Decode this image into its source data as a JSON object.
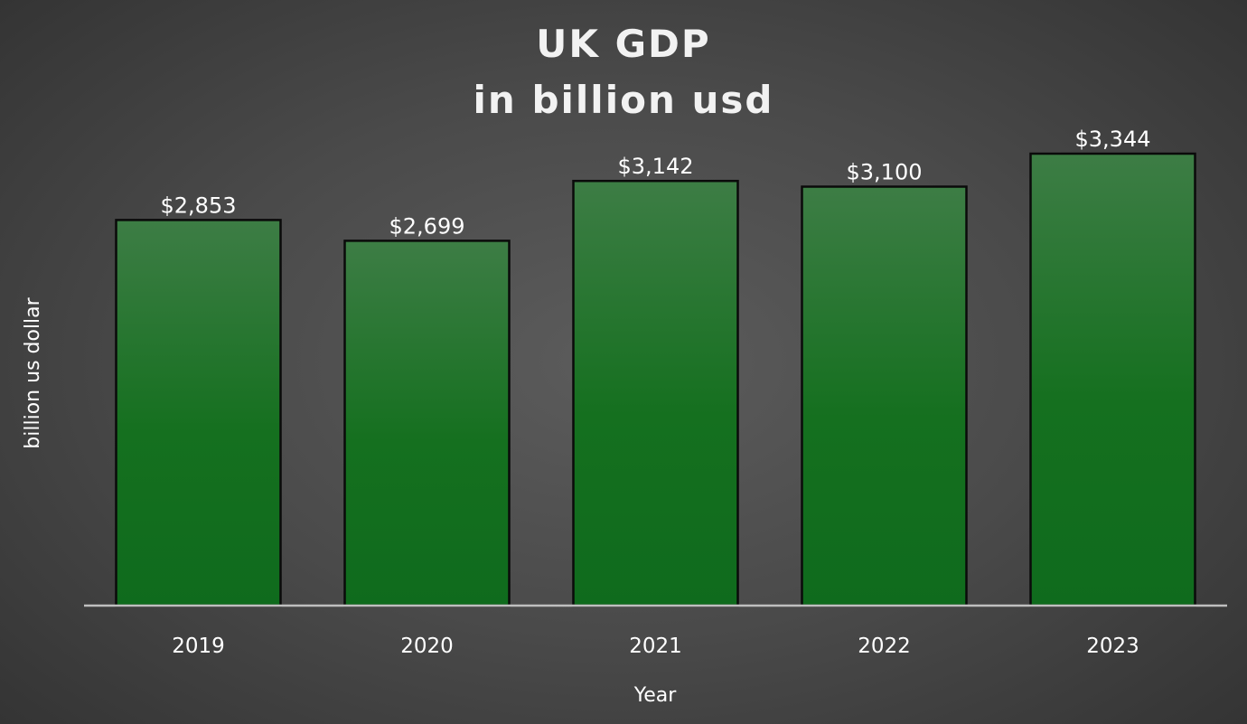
{
  "chart_data": {
    "type": "bar",
    "title": "UK GDP",
    "subtitle": "in billion usd",
    "xlabel": "Year",
    "ylabel": "billion us dollar",
    "categories": [
      "2019",
      "2020",
      "2021",
      "2022",
      "2023"
    ],
    "values": [
      2853,
      2699,
      3142,
      3100,
      3344
    ],
    "data_labels": [
      "$2,853",
      "$2,699",
      "$3,142",
      "$3,100",
      "$3,344"
    ],
    "ylim": [
      0,
      3600
    ],
    "grid": false,
    "legend": "none",
    "colors": {
      "bar_top": "#3d7d45",
      "bar_bottom": "#0f6b1d",
      "bar_outline": "#0a0a0a",
      "axis_line": "#bfbfbf",
      "background_center": "#5c5c5c",
      "background_edge": "#333333",
      "text": "#ffffff"
    }
  }
}
